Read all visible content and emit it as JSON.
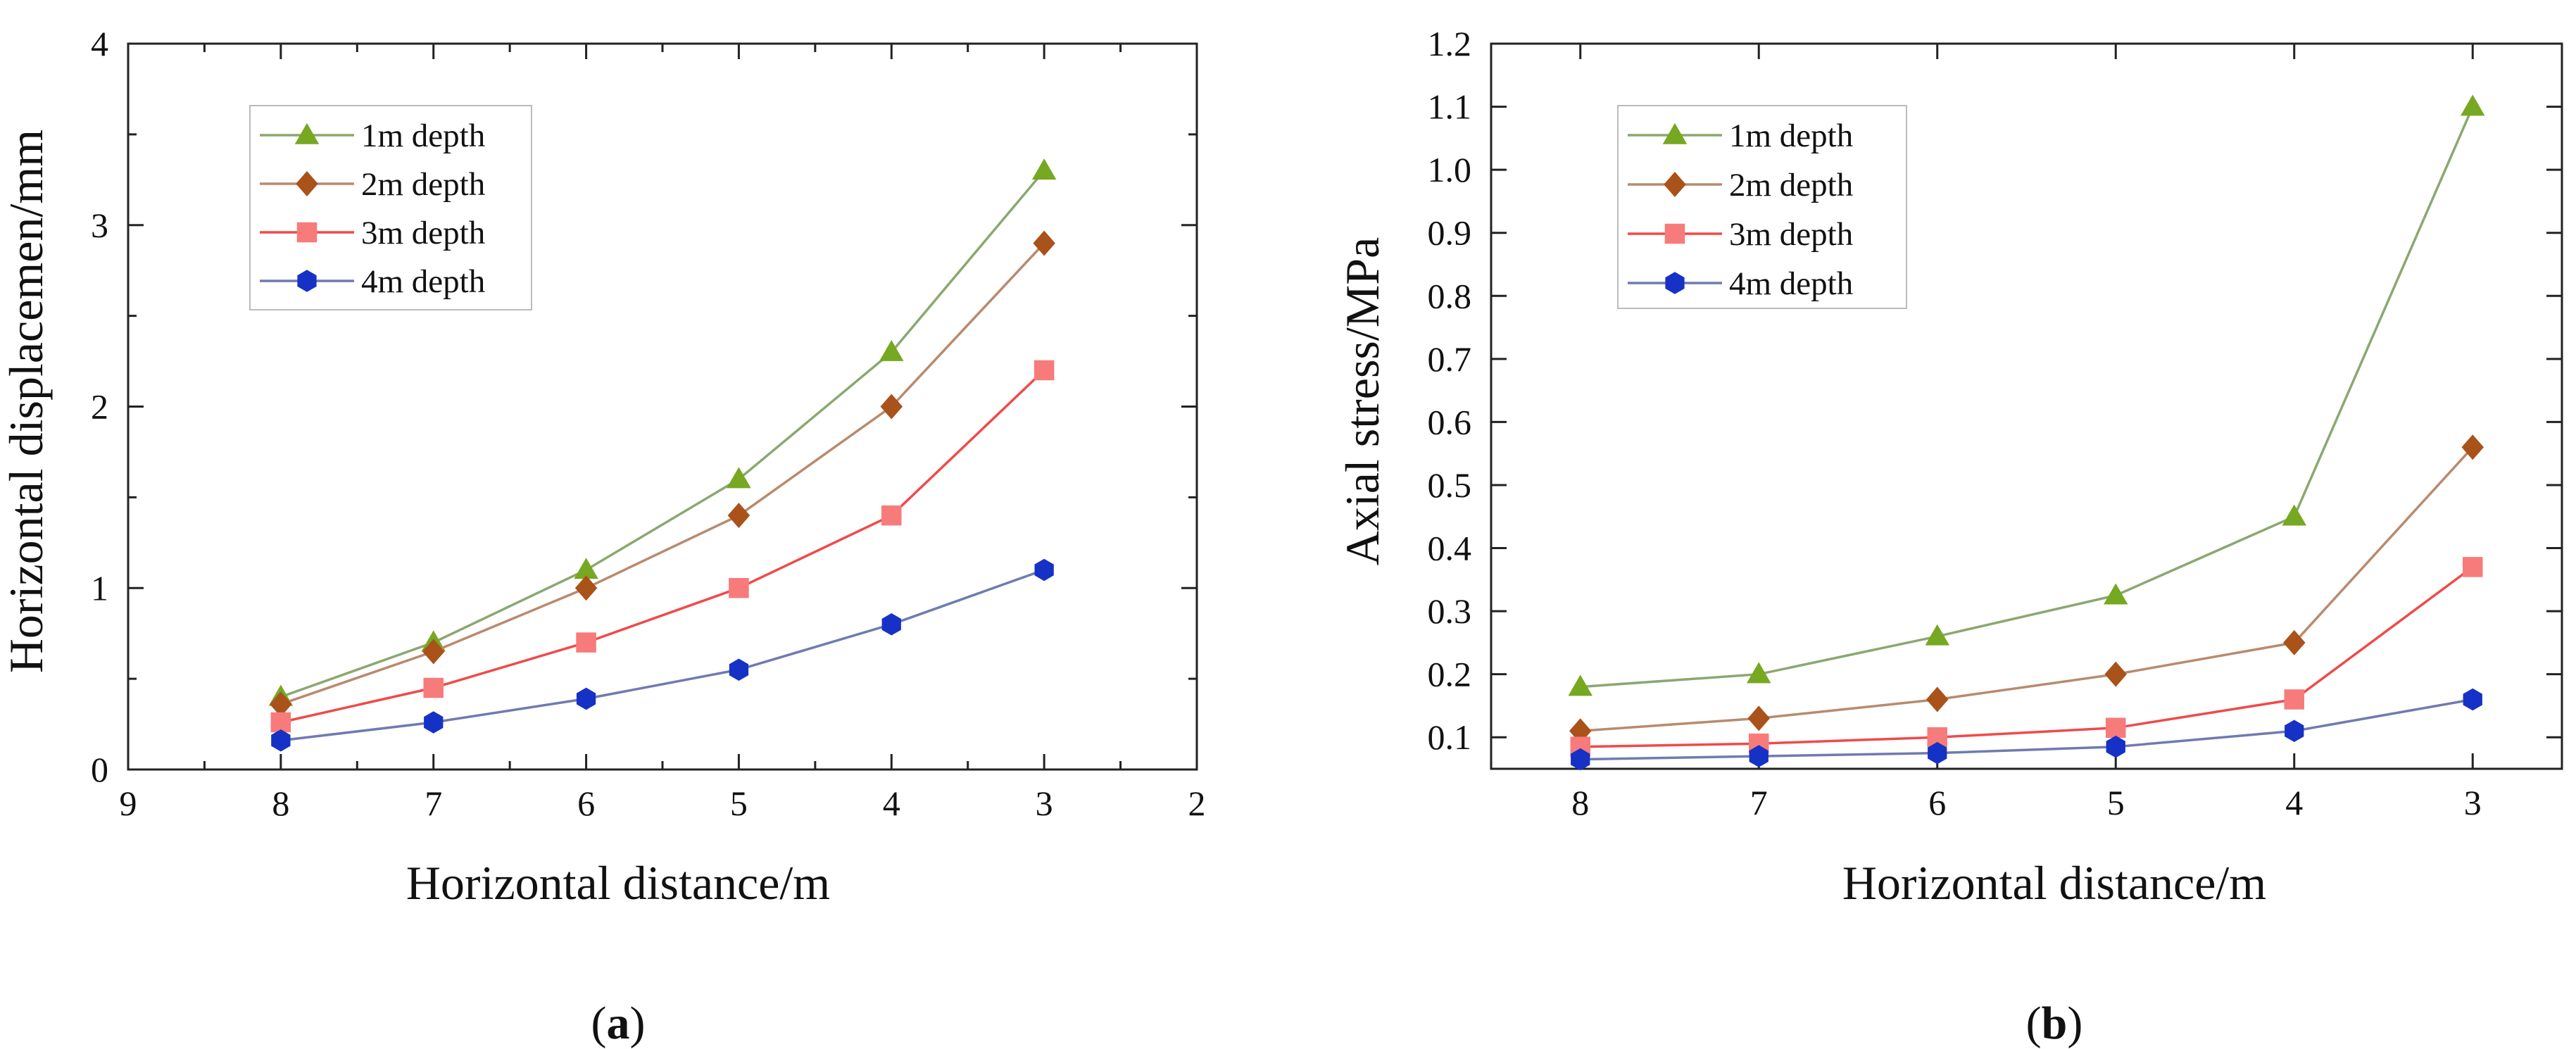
{
  "colors": {
    "series": [
      "#6a9a1f",
      "#a0520f",
      "#f05a5a",
      "#1f3fbf"
    ],
    "marker_fill": [
      "#76a821",
      "#a9521a",
      "#f77b7b",
      "#1631c5"
    ],
    "line": [
      "#8aa870",
      "#b98a6e",
      "#f04a4a",
      "#6f7bb0"
    ],
    "axis": "#222222"
  },
  "chart_data": [
    {
      "id": "a",
      "type": "line",
      "panel_label": "a",
      "title": "",
      "xlabel": "Horizontal distance/m",
      "ylabel": "Horizontal displacemen/mm",
      "xlim": [
        9,
        2
      ],
      "ylim": [
        0,
        4
      ],
      "x_reversed": true,
      "x_ticks": [
        9,
        8,
        7,
        6,
        5,
        4,
        3,
        2
      ],
      "x_tick_labels": [
        "9",
        "8",
        "7",
        "6",
        "5",
        "4",
        "3",
        "2"
      ],
      "y_ticks": [
        0,
        1,
        2,
        3,
        4
      ],
      "y_tick_labels": [
        "0",
        "1",
        "2",
        "3",
        "4"
      ],
      "y_minor_ticks": [
        0.5,
        1.5,
        2.5,
        3.5
      ],
      "x_minor_ticks": [
        8.5,
        7.5,
        6.5,
        5.5,
        4.5,
        3.5,
        2.5
      ],
      "grid": false,
      "legend_position": "top-left",
      "x": [
        8,
        7,
        6,
        5,
        4,
        3
      ],
      "series": [
        {
          "name": "1m depth",
          "marker": "triangle",
          "values": [
            0.4,
            0.7,
            1.1,
            1.6,
            2.3,
            3.3
          ]
        },
        {
          "name": "2m depth",
          "marker": "diamond",
          "values": [
            0.36,
            0.65,
            1.0,
            1.4,
            2.0,
            2.9
          ]
        },
        {
          "name": "3m depth",
          "marker": "square",
          "values": [
            0.26,
            0.45,
            0.7,
            1.0,
            1.4,
            2.2
          ]
        },
        {
          "name": "4m depth",
          "marker": "hexagon",
          "values": [
            0.16,
            0.26,
            0.39,
            0.55,
            0.8,
            1.1
          ]
        }
      ]
    },
    {
      "id": "b",
      "type": "line",
      "panel_label": "b",
      "title": "",
      "xlabel": "Horizontal distance/m",
      "ylabel": "Axial stress/MPa",
      "xlim": [
        8.5,
        2.5
      ],
      "ylim": [
        0.05,
        1.2
      ],
      "x_reversed": true,
      "x_ticks": [
        8,
        7,
        6,
        5,
        4,
        3
      ],
      "x_tick_labels": [
        "8",
        "7",
        "6",
        "5",
        "4",
        "3"
      ],
      "y_ticks": [
        0.1,
        0.2,
        0.3,
        0.4,
        0.5,
        0.6,
        0.7,
        0.8,
        0.9,
        1.0,
        1.1,
        1.2
      ],
      "y_tick_labels": [
        "0.1",
        "0.2",
        "0.3",
        "0.4",
        "0.5",
        "0.6",
        "0.7",
        "0.8",
        "0.9",
        "1.0",
        "1.1",
        "1.2"
      ],
      "y_minor_ticks": [],
      "x_minor_ticks": [],
      "grid": false,
      "legend_position": "top-left",
      "x": [
        8,
        7,
        6,
        5,
        4,
        3
      ],
      "series": [
        {
          "name": "1m depth",
          "marker": "triangle",
          "values": [
            0.18,
            0.2,
            0.26,
            0.325,
            0.45,
            1.1
          ]
        },
        {
          "name": "2m depth",
          "marker": "diamond",
          "values": [
            0.11,
            0.13,
            0.16,
            0.2,
            0.25,
            0.56
          ]
        },
        {
          "name": "3m depth",
          "marker": "square",
          "values": [
            0.085,
            0.09,
            0.1,
            0.115,
            0.16,
            0.37
          ]
        },
        {
          "name": "4m depth",
          "marker": "hexagon",
          "values": [
            0.065,
            0.07,
            0.075,
            0.085,
            0.11,
            0.16
          ]
        }
      ]
    }
  ]
}
